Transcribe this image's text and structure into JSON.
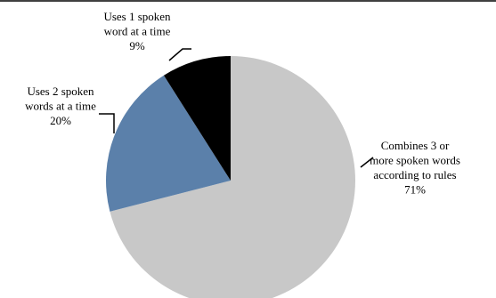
{
  "chart_data": {
    "type": "pie",
    "title": "",
    "categories": [
      "Combines 3 or more spoken words according to rules",
      "Uses 2 spoken words at a time",
      "Uses 1 spoken word at a time"
    ],
    "values": [
      71,
      20,
      9
    ],
    "unit": "%",
    "colors": [
      "#c8c8c8",
      "#5b80aa",
      "#000000"
    ],
    "labels": [
      {
        "lines": [
          "Combines 3 or",
          "more spoken words",
          "according to rules"
        ],
        "pct": "71%"
      },
      {
        "lines": [
          "Uses 2 spoken",
          "words at a time"
        ],
        "pct": "20%"
      },
      {
        "lines": [
          "Uses 1 spoken",
          "word at a time"
        ],
        "pct": "9%"
      }
    ],
    "legend": "none",
    "grid": false
  }
}
